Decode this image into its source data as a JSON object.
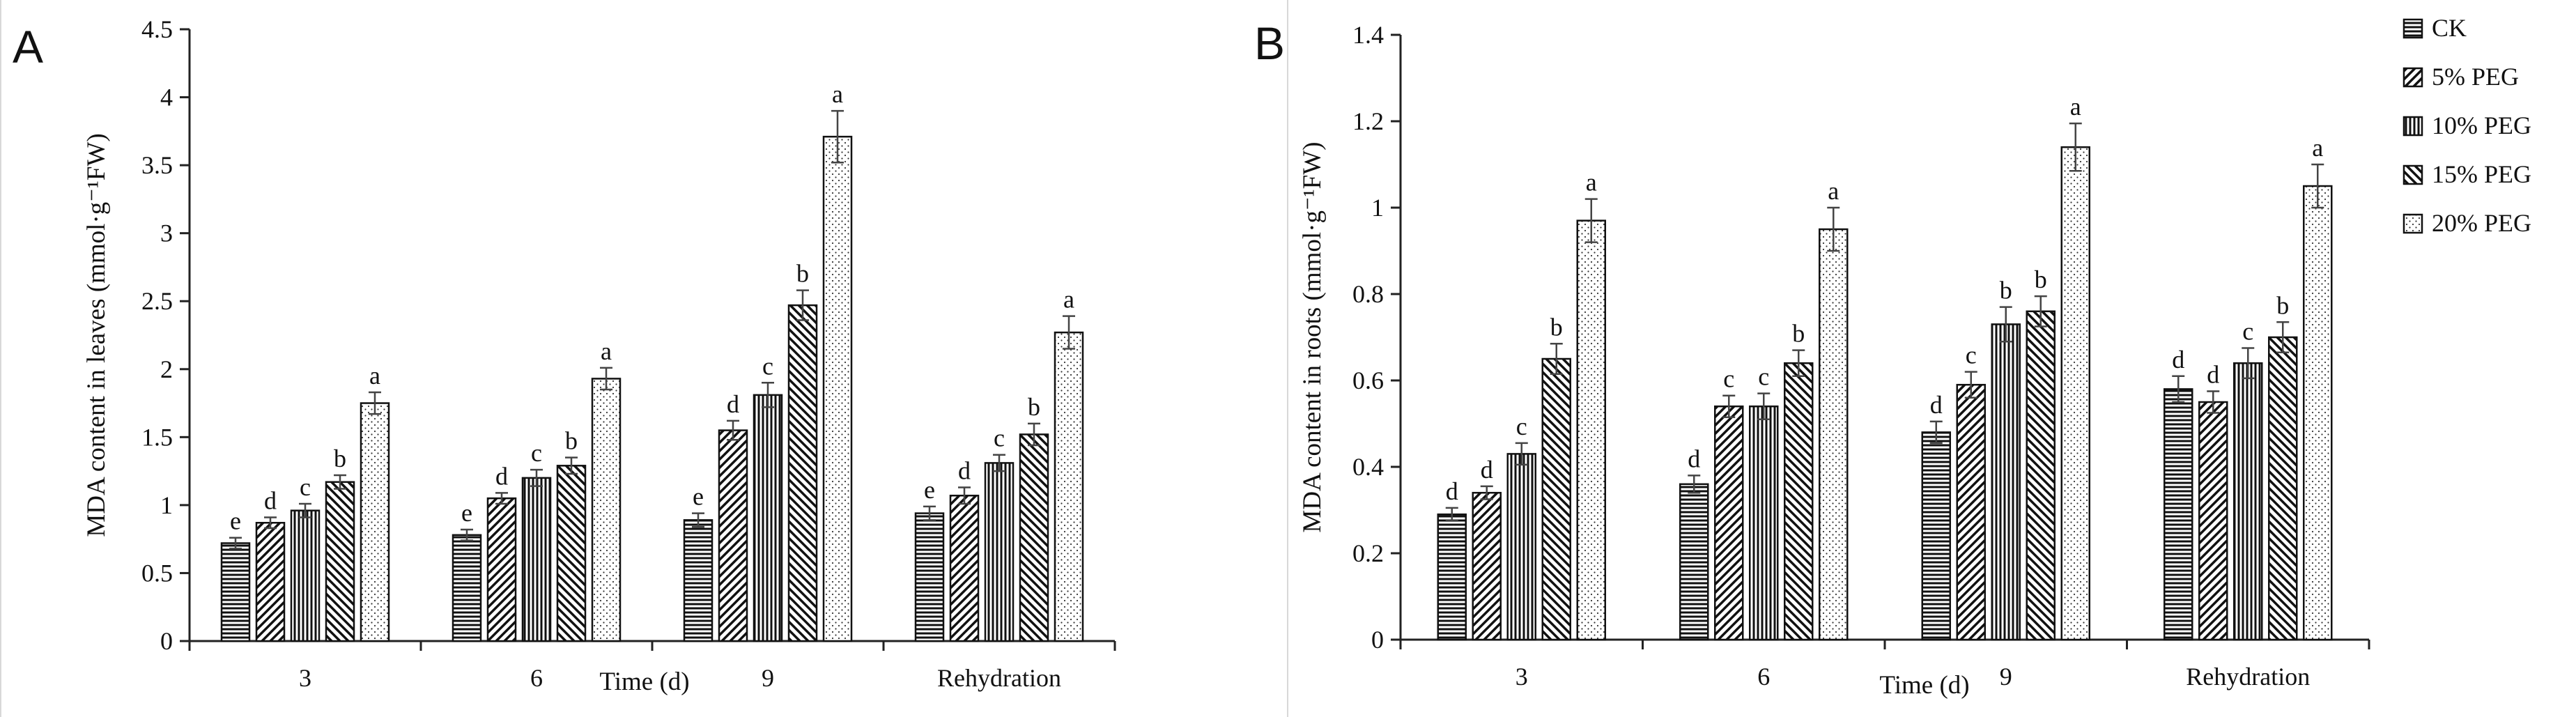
{
  "legend": {
    "entries": [
      "CK",
      "5% PEG",
      "10% PEG",
      "15% PEG",
      "20% PEG"
    ],
    "patterns": [
      "horizontal",
      "diag-up",
      "vertical",
      "diag-down",
      "dots"
    ]
  },
  "chart_data": [
    {
      "type": "bar",
      "panel": "A",
      "title": "",
      "xlabel": "Time (d)",
      "ylabel": "MDA content in leaves (mmol·g⁻¹FW)",
      "ylim": [
        0,
        4.5
      ],
      "yticks": [
        "0",
        "0.5",
        "1",
        "1.5",
        "2",
        "2.5",
        "3",
        "3.5",
        "4",
        "4.5"
      ],
      "ytick_values": [
        0,
        0.5,
        1,
        1.5,
        2,
        2.5,
        3,
        3.5,
        4,
        4.5
      ],
      "categories": [
        "3",
        "6",
        "9",
        "Rehydration"
      ],
      "series": [
        {
          "name": "CK",
          "values": [
            0.72,
            0.78,
            0.89,
            0.94
          ],
          "errors": [
            0.04,
            0.04,
            0.05,
            0.05
          ],
          "letters": [
            "e",
            "e",
            "e",
            "e"
          ]
        },
        {
          "name": "5% PEG",
          "values": [
            0.87,
            1.05,
            1.55,
            1.07
          ],
          "errors": [
            0.04,
            0.04,
            0.07,
            0.06
          ],
          "letters": [
            "d",
            "d",
            "d",
            "d"
          ]
        },
        {
          "name": "10% PEG",
          "values": [
            0.96,
            1.2,
            1.81,
            1.31
          ],
          "errors": [
            0.05,
            0.06,
            0.09,
            0.06
          ],
          "letters": [
            "c",
            "c",
            "c",
            "c"
          ]
        },
        {
          "name": "15% PEG",
          "values": [
            1.17,
            1.29,
            2.47,
            1.52
          ],
          "errors": [
            0.05,
            0.06,
            0.11,
            0.08
          ],
          "letters": [
            "b",
            "b",
            "b",
            "b"
          ]
        },
        {
          "name": "20% PEG",
          "values": [
            1.75,
            1.93,
            3.71,
            2.27
          ],
          "errors": [
            0.08,
            0.08,
            0.19,
            0.12
          ],
          "letters": [
            "a",
            "a",
            "a",
            "a"
          ]
        }
      ]
    },
    {
      "type": "bar",
      "panel": "B",
      "title": "",
      "xlabel": "Time (d)",
      "ylabel": "MDA content in roots (mmol·g⁻¹FW)",
      "ylim": [
        0,
        1.4
      ],
      "yticks": [
        "0",
        "0.2",
        "0.4",
        "0.6",
        "0.8",
        "1",
        "1.2",
        "1.4"
      ],
      "ytick_values": [
        0,
        0.2,
        0.4,
        0.6,
        0.8,
        1.0,
        1.2,
        1.4
      ],
      "categories": [
        "3",
        "6",
        "9",
        "Rehydration"
      ],
      "series": [
        {
          "name": "CK",
          "values": [
            0.29,
            0.36,
            0.48,
            0.58
          ],
          "errors": [
            0.015,
            0.02,
            0.025,
            0.03
          ],
          "letters": [
            "d",
            "d",
            "d",
            "d"
          ]
        },
        {
          "name": "5% PEG",
          "values": [
            0.34,
            0.54,
            0.59,
            0.55
          ],
          "errors": [
            0.015,
            0.025,
            0.03,
            0.025
          ],
          "letters": [
            "d",
            "c",
            "c",
            "d"
          ]
        },
        {
          "name": "10% PEG",
          "values": [
            0.43,
            0.54,
            0.73,
            0.64
          ],
          "errors": [
            0.025,
            0.03,
            0.04,
            0.035
          ],
          "letters": [
            "c",
            "c",
            "b",
            "c"
          ]
        },
        {
          "name": "15% PEG",
          "values": [
            0.65,
            0.64,
            0.76,
            0.7
          ],
          "errors": [
            0.035,
            0.03,
            0.035,
            0.035
          ],
          "letters": [
            "b",
            "b",
            "b",
            "b"
          ]
        },
        {
          "name": "20% PEG",
          "values": [
            0.97,
            0.95,
            1.14,
            1.05
          ],
          "errors": [
            0.05,
            0.05,
            0.055,
            0.05
          ],
          "letters": [
            "a",
            "a",
            "a",
            "a"
          ]
        }
      ]
    }
  ]
}
